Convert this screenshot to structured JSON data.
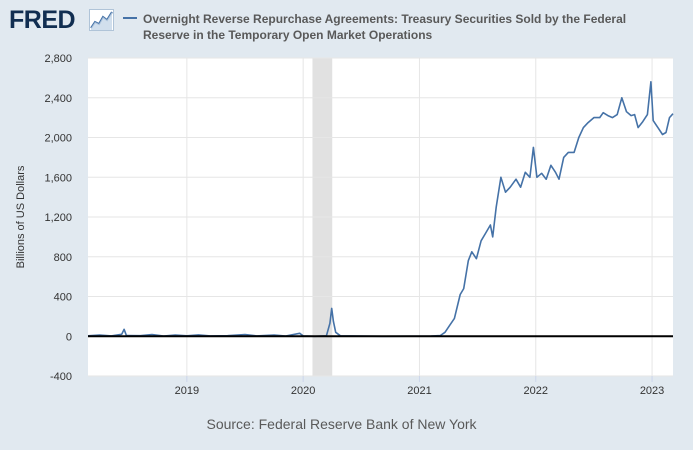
{
  "header": {
    "logo_text": "FRED",
    "logo_icon": "trend-chart-icon"
  },
  "colors": {
    "series": "#4572a7",
    "background": "#e1e9f0",
    "plot_bg": "#ffffff",
    "recession": "#e1e1e1",
    "zero_line": "#000000"
  },
  "chart_data": {
    "type": "line",
    "title": "Overnight Reverse Repurchase Agreements: Treasury Securities Sold by the Federal Reserve in the Temporary Open Market Operations",
    "xlabel": "",
    "ylabel": "Billions of US Dollars",
    "ylim": [
      -400,
      2800
    ],
    "xlim": [
      2018.15,
      2023.18
    ],
    "yticks": [
      -400,
      0,
      400,
      800,
      1200,
      1600,
      2000,
      2400,
      2800
    ],
    "ytick_labels": [
      "-400",
      "0",
      "400",
      "800",
      "1,200",
      "1,600",
      "2,000",
      "2,400",
      "2,800"
    ],
    "xticks": [
      2019,
      2020,
      2021,
      2022,
      2023
    ],
    "xtick_labels": [
      "2019",
      "2020",
      "2021",
      "2022",
      "2023"
    ],
    "grid": true,
    "recession_shading": [
      [
        2020.08,
        2020.25
      ]
    ],
    "source": "Source: Federal Reserve Bank of New York",
    "series": [
      {
        "name": "Overnight Reverse Repurchase Agreements",
        "points": [
          [
            2018.15,
            5
          ],
          [
            2018.25,
            12
          ],
          [
            2018.35,
            4
          ],
          [
            2018.44,
            20
          ],
          [
            2018.46,
            70
          ],
          [
            2018.48,
            8
          ],
          [
            2018.6,
            6
          ],
          [
            2018.7,
            18
          ],
          [
            2018.8,
            3
          ],
          [
            2018.9,
            12
          ],
          [
            2019.0,
            5
          ],
          [
            2019.1,
            14
          ],
          [
            2019.2,
            4
          ],
          [
            2019.35,
            6
          ],
          [
            2019.5,
            18
          ],
          [
            2019.6,
            4
          ],
          [
            2019.75,
            12
          ],
          [
            2019.85,
            3
          ],
          [
            2019.97,
            30
          ],
          [
            2020.0,
            4
          ],
          [
            2020.1,
            0
          ],
          [
            2020.2,
            5
          ],
          [
            2020.23,
            130
          ],
          [
            2020.245,
            280
          ],
          [
            2020.26,
            150
          ],
          [
            2020.28,
            40
          ],
          [
            2020.32,
            5
          ],
          [
            2020.5,
            2
          ],
          [
            2020.7,
            0
          ],
          [
            2020.9,
            1
          ],
          [
            2021.1,
            2
          ],
          [
            2021.18,
            8
          ],
          [
            2021.22,
            40
          ],
          [
            2021.26,
            110
          ],
          [
            2021.3,
            180
          ],
          [
            2021.35,
            420
          ],
          [
            2021.38,
            480
          ],
          [
            2021.42,
            760
          ],
          [
            2021.45,
            850
          ],
          [
            2021.49,
            780
          ],
          [
            2021.53,
            960
          ],
          [
            2021.57,
            1040
          ],
          [
            2021.61,
            1120
          ],
          [
            2021.63,
            1000
          ],
          [
            2021.66,
            1300
          ],
          [
            2021.7,
            1600
          ],
          [
            2021.74,
            1450
          ],
          [
            2021.78,
            1500
          ],
          [
            2021.83,
            1580
          ],
          [
            2021.87,
            1500
          ],
          [
            2021.91,
            1650
          ],
          [
            2021.95,
            1600
          ],
          [
            2021.98,
            1900
          ],
          [
            2022.01,
            1600
          ],
          [
            2022.05,
            1640
          ],
          [
            2022.09,
            1580
          ],
          [
            2022.13,
            1720
          ],
          [
            2022.17,
            1650
          ],
          [
            2022.2,
            1580
          ],
          [
            2022.24,
            1800
          ],
          [
            2022.28,
            1850
          ],
          [
            2022.33,
            1850
          ],
          [
            2022.37,
            2000
          ],
          [
            2022.41,
            2100
          ],
          [
            2022.45,
            2150
          ],
          [
            2022.5,
            2200
          ],
          [
            2022.55,
            2200
          ],
          [
            2022.58,
            2250
          ],
          [
            2022.62,
            2220
          ],
          [
            2022.66,
            2200
          ],
          [
            2022.7,
            2230
          ],
          [
            2022.74,
            2400
          ],
          [
            2022.78,
            2260
          ],
          [
            2022.82,
            2220
          ],
          [
            2022.85,
            2230
          ],
          [
            2022.88,
            2100
          ],
          [
            2022.92,
            2160
          ],
          [
            2022.96,
            2230
          ],
          [
            2022.99,
            2560
          ],
          [
            2023.01,
            2170
          ],
          [
            2023.05,
            2100
          ],
          [
            2023.09,
            2030
          ],
          [
            2023.12,
            2050
          ],
          [
            2023.15,
            2200
          ],
          [
            2023.18,
            2240
          ]
        ]
      }
    ]
  }
}
